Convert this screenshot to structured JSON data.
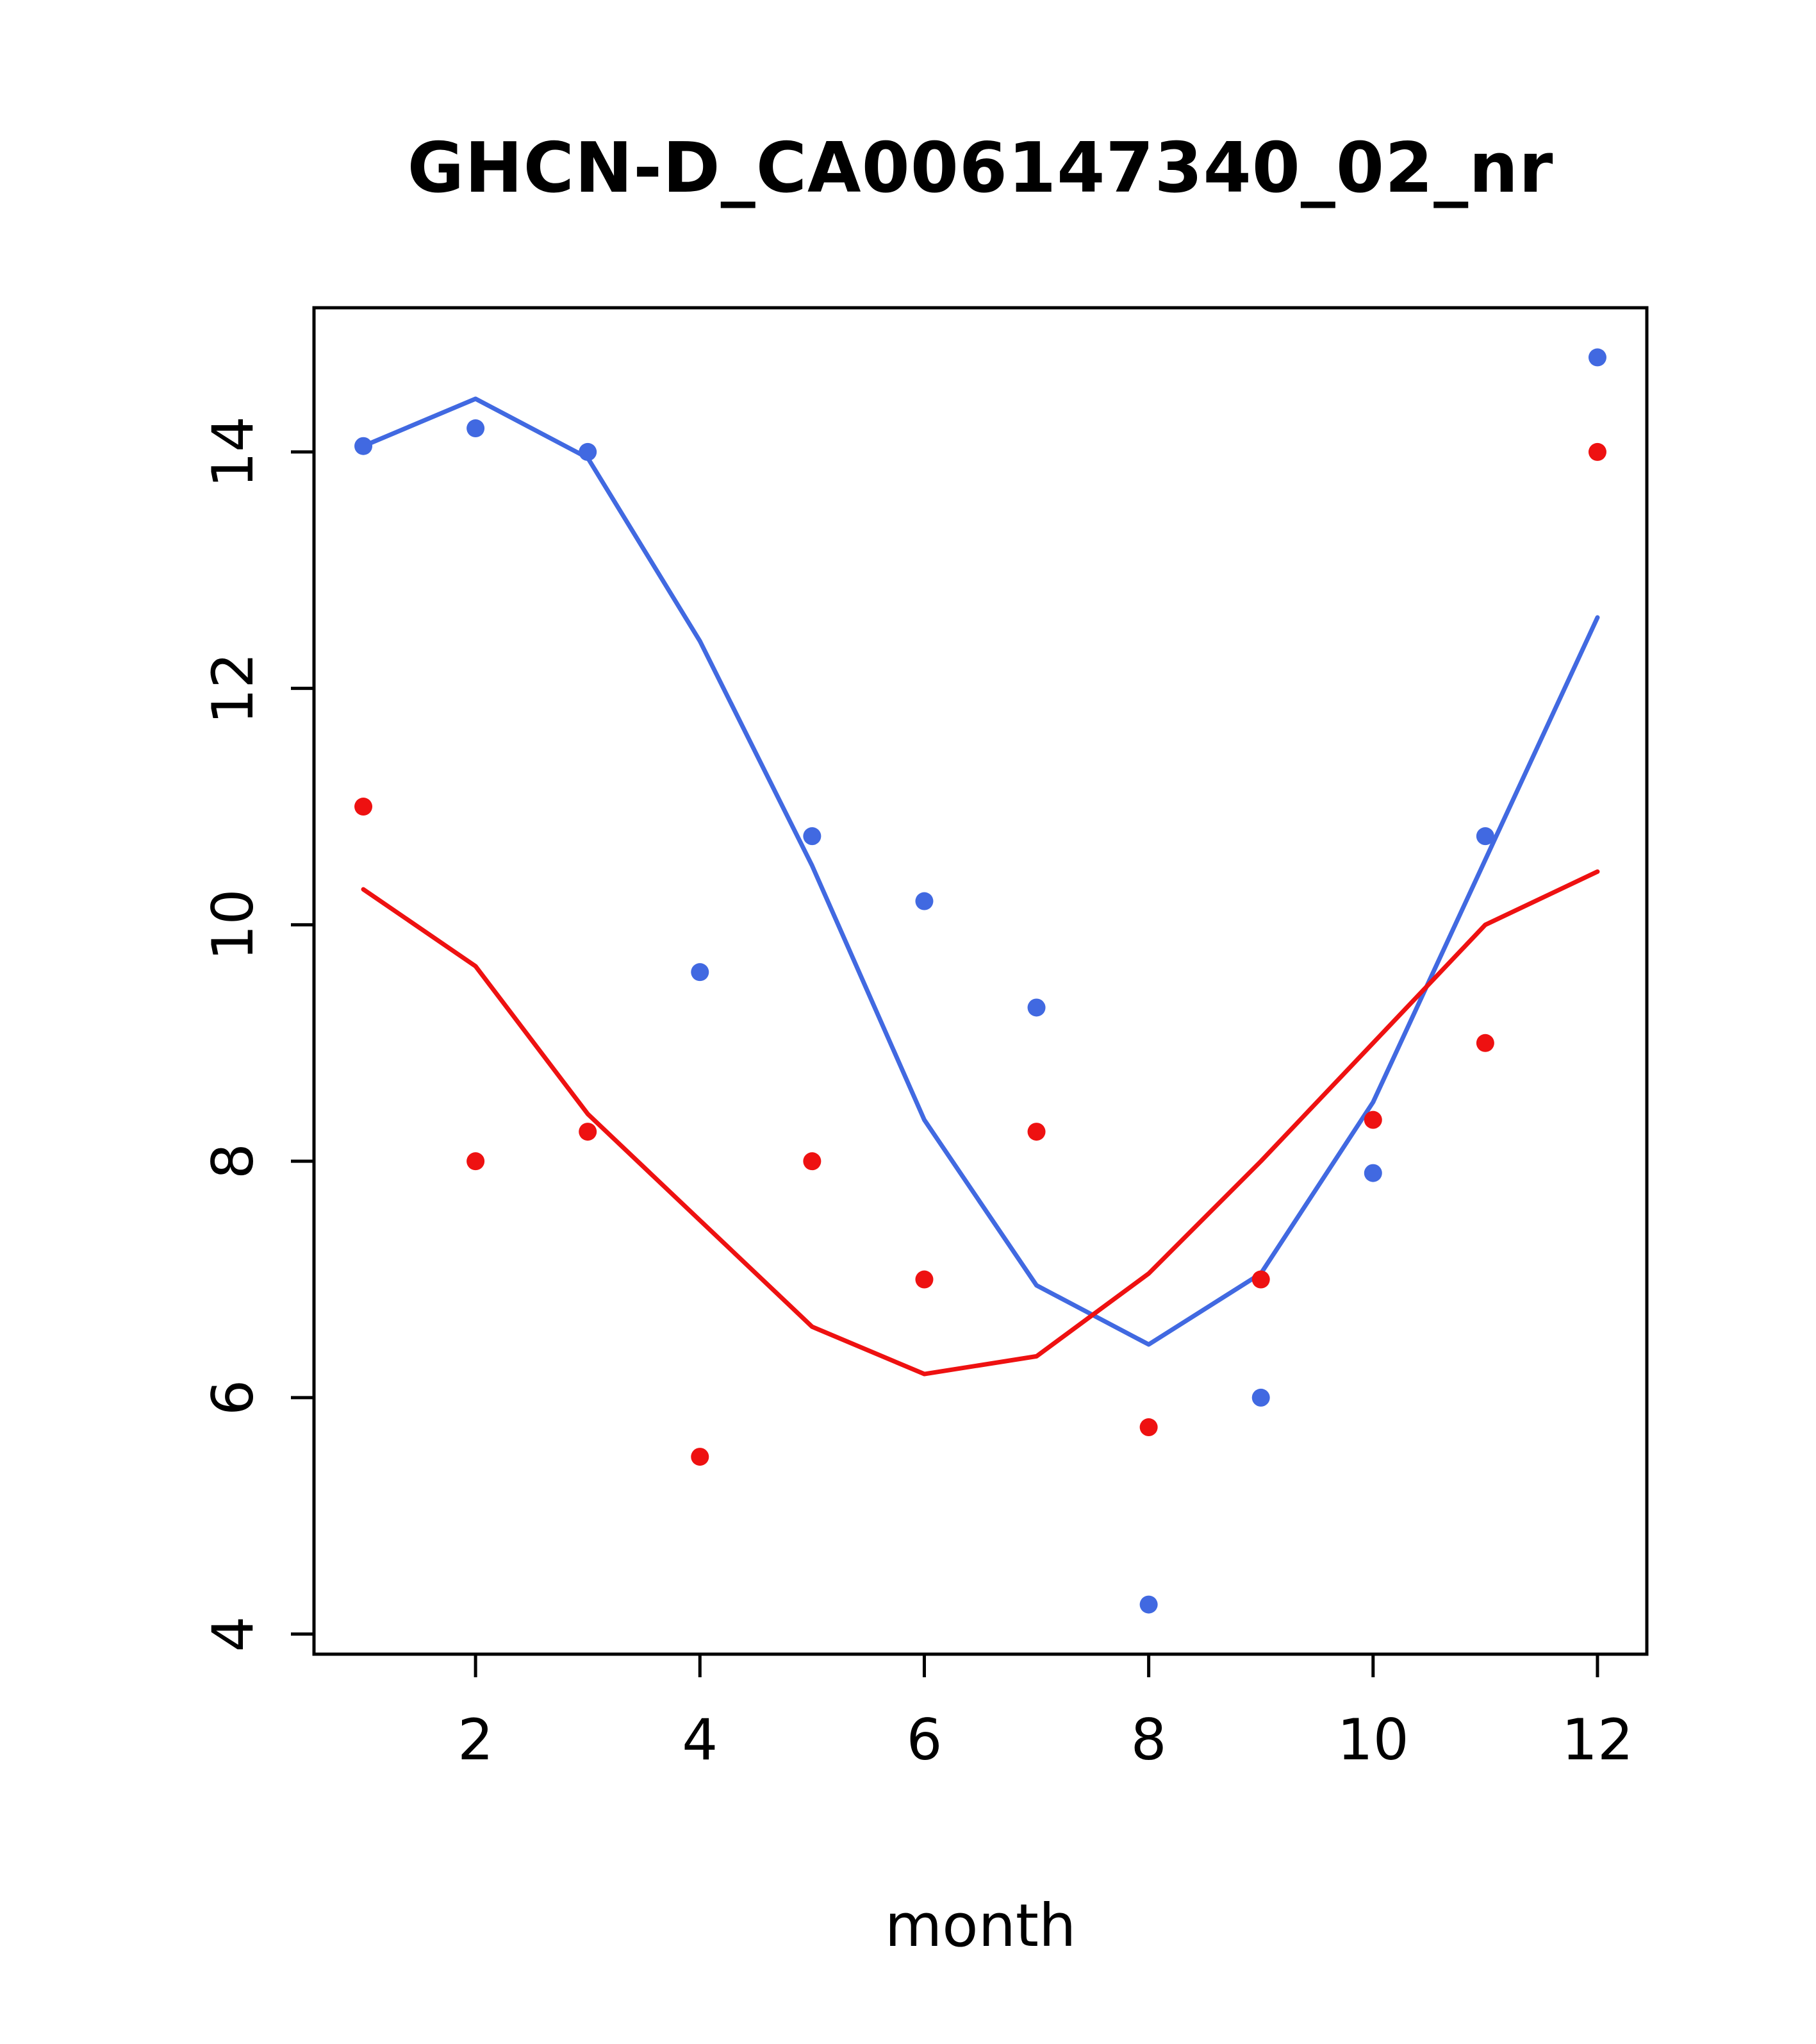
{
  "chart": {
    "title": "GHCN-D_CA006147340_02_nr",
    "xlabel": "month"
  },
  "chart_data": {
    "type": "line",
    "title": "GHCN-D_CA006147340_02_nr",
    "xlabel": "month",
    "ylabel": "",
    "x": [
      1,
      2,
      3,
      4,
      5,
      6,
      7,
      8,
      9,
      10,
      11,
      12
    ],
    "x_ticks": [
      2,
      4,
      6,
      8,
      10,
      12
    ],
    "y_ticks": [
      4,
      6,
      8,
      10,
      12,
      14
    ],
    "xlim": [
      0.56,
      12.44
    ],
    "ylim": [
      3.83,
      15.22
    ],
    "grid": false,
    "legend": "none",
    "colors": {
      "blue": "#4169e1",
      "red": "#ee1111"
    },
    "series": [
      {
        "name": "blue-observations",
        "type": "scatter",
        "color": "#4169e1",
        "values": [
          14.05,
          14.2,
          14.0,
          9.6,
          10.75,
          10.2,
          9.3,
          4.25,
          6.0,
          7.9,
          10.75,
          14.8
        ]
      },
      {
        "name": "blue-fit",
        "type": "line",
        "color": "#4169e1",
        "values": [
          14.05,
          14.45,
          13.95,
          12.4,
          10.5,
          8.35,
          6.95,
          6.45,
          7.05,
          8.5,
          10.55,
          12.6
        ]
      },
      {
        "name": "red-observations",
        "type": "scatter",
        "color": "#ee1111",
        "values": [
          11.0,
          8.0,
          8.25,
          5.5,
          8.0,
          7.0,
          8.25,
          5.75,
          7.0,
          8.35,
          9.0,
          14.0
        ]
      },
      {
        "name": "red-fit",
        "type": "line",
        "color": "#ee1111",
        "values": [
          10.3,
          9.65,
          8.4,
          7.5,
          6.6,
          6.2,
          6.35,
          7.05,
          8.0,
          9.0,
          10.0,
          10.45
        ]
      }
    ]
  }
}
